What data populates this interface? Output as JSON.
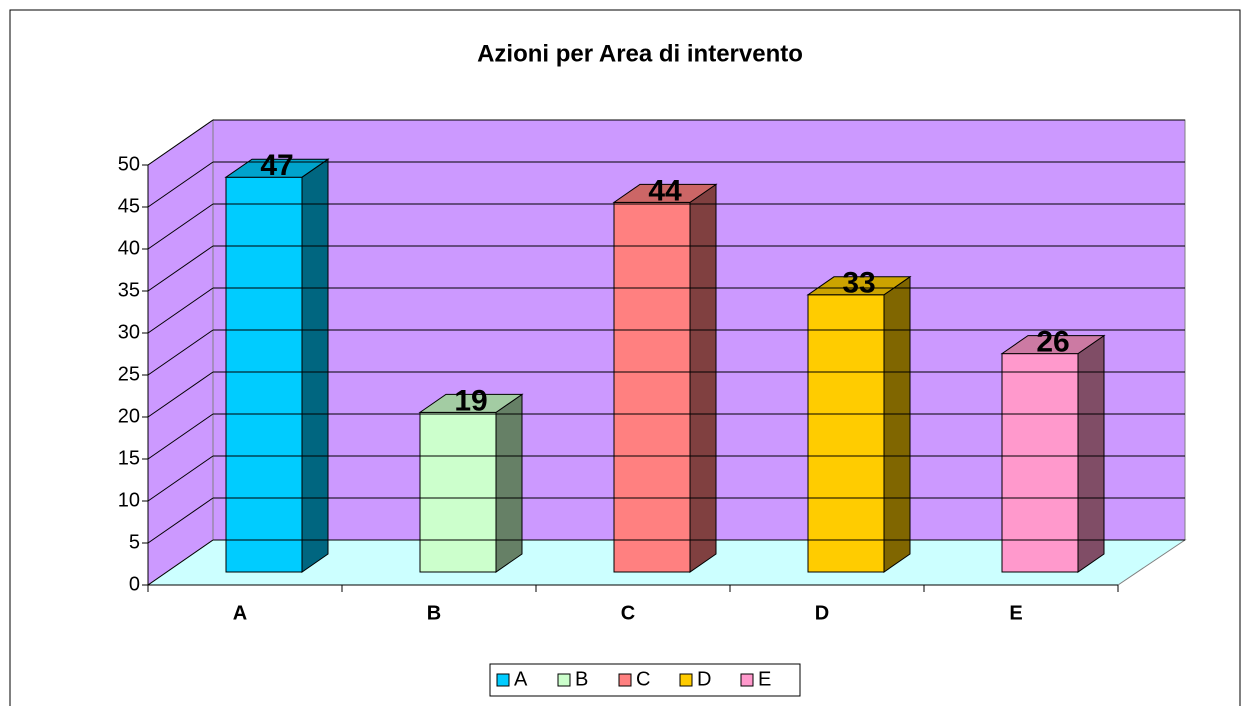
{
  "chart_data": {
    "type": "bar",
    "title": "Azioni per Area di intervento",
    "categories": [
      "A",
      "B",
      "C",
      "D",
      "E"
    ],
    "values": [
      47,
      19,
      44,
      33,
      26
    ],
    "colors": [
      "#00ccff",
      "#ccffcc",
      "#ff8080",
      "#ffcc00",
      "#ff99cc"
    ],
    "ylim": [
      0,
      50
    ],
    "yticks": [
      0,
      5,
      10,
      15,
      20,
      25,
      30,
      35,
      40,
      45,
      50
    ],
    "grid": true,
    "legend": "bottom"
  }
}
